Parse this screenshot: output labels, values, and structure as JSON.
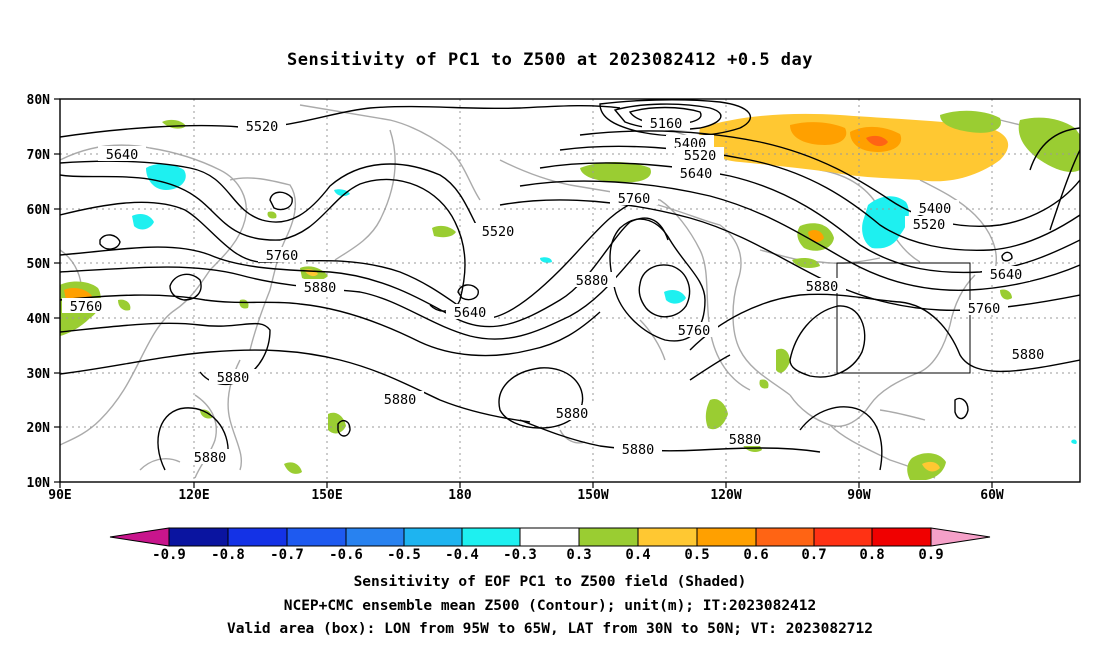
{
  "title": "Sensitivity of PC1 to Z500 at 2023082412 +0.5 day",
  "captions": [
    "Sensitivity of EOF PC1 to Z500 field (Shaded)",
    "NCEP+CMC ensemble mean Z500 (Contour); unit(m); IT:2023082412",
    "Valid area (box): LON from 95W to 65W, LAT from 30N to 50N; VT: 2023082712"
  ],
  "lon_labels": [
    "90E",
    "120E",
    "150E",
    "180",
    "150W",
    "120W",
    "90W",
    "60W"
  ],
  "lat_labels": [
    "80N",
    "70N",
    "60N",
    "50N",
    "40N",
    "30N",
    "20N",
    "10N"
  ],
  "colorbar": {
    "labels": [
      "-0.9",
      "-0.8",
      "-0.7",
      "-0.6",
      "-0.5",
      "-0.4",
      "-0.3",
      "0.3",
      "0.4",
      "0.5",
      "0.6",
      "0.7",
      "0.8",
      "0.9"
    ],
    "colors": [
      "#c8158c",
      "#0a14a0",
      "#1432e6",
      "#1e5af0",
      "#2882f0",
      "#1eb4f0",
      "#1ef0f0",
      "#ffffff",
      "#9acd32",
      "#ffc832",
      "#ffa000",
      "#ff6414",
      "#ff3214",
      "#f00000",
      "#f5a0c8"
    ]
  },
  "contour_labels": [
    "5520",
    "5640",
    "5160",
    "5400",
    "5520",
    "5640",
    "5760",
    "5520",
    "5400",
    "5520",
    "5760",
    "5880",
    "5640",
    "5880",
    "5760",
    "5880",
    "5760",
    "5640",
    "5880",
    "5880",
    "5880",
    "5880",
    "5880",
    "5880",
    "5880",
    "5760"
  ],
  "valid_box": {
    "lon_west": "95W",
    "lon_east": "65W",
    "lat_south": "30N",
    "lat_north": "50N"
  }
}
